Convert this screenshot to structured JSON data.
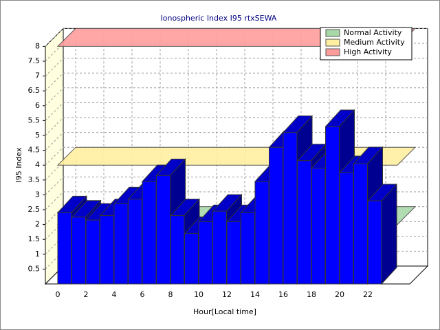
{
  "chart_data": {
    "type": "bar3d",
    "title": "Ionospheric Index I95 rtxSEWA",
    "x_label": "Hour[Local time]",
    "y_label": "I95 Index",
    "x": [
      0,
      1,
      2,
      3,
      4,
      5,
      6,
      7,
      8,
      9,
      10,
      11,
      12,
      13,
      14,
      15,
      16,
      17,
      18,
      19,
      20,
      21,
      22
    ],
    "values": [
      2.4,
      2.25,
      2.15,
      2.3,
      2.7,
      2.85,
      3.45,
      3.65,
      2.3,
      1.7,
      2.1,
      2.45,
      2.1,
      2.4,
      3.45,
      4.6,
      5.1,
      4.15,
      3.9,
      5.3,
      3.75,
      4.05,
      2.8
    ],
    "color": "#0000ff",
    "bands": [
      {
        "name": "Normal Activity",
        "color": "#a8d8a8",
        "value": 2
      },
      {
        "name": "Medium Activity",
        "color": "#fff0a0",
        "value": 4
      },
      {
        "name": "High Activity",
        "color": "#ff9d9d",
        "value": 8
      }
    ],
    "ylim": [
      0,
      8
    ],
    "yticks": [
      0.5,
      1,
      1.5,
      2,
      2.5,
      3,
      3.5,
      4,
      4.5,
      5,
      5.5,
      6,
      6.5,
      7,
      7.5,
      8
    ],
    "xticks": [
      0,
      2,
      4,
      6,
      8,
      10,
      12,
      14,
      16,
      18,
      20,
      22
    ],
    "grid": true
  }
}
